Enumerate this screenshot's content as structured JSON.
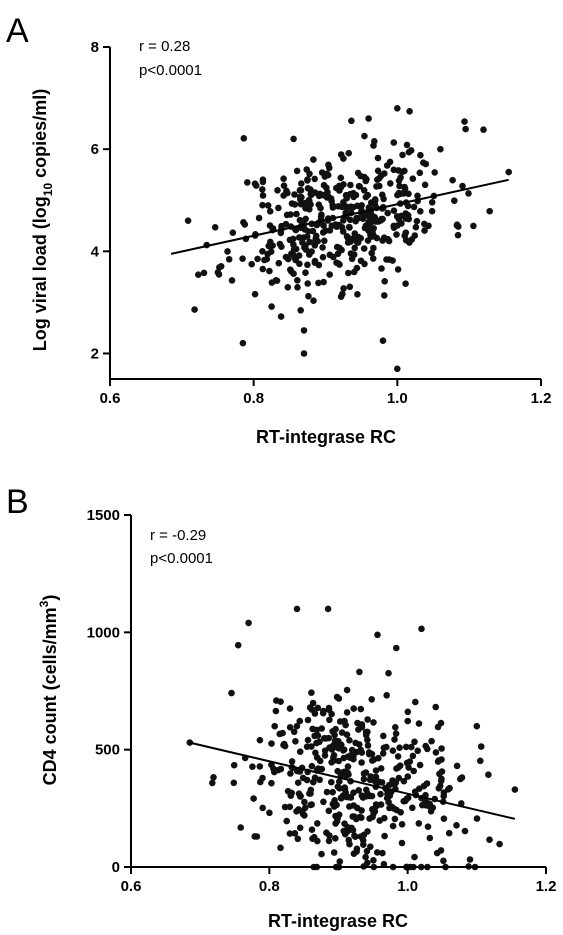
{
  "chart_data": [
    {
      "type": "scatter",
      "panel_label": "A",
      "xlabel": "RT-integrase RC",
      "ylabel_parts": [
        "Log viral load (log",
        "10",
        " copies/ml)"
      ],
      "xlim": [
        0.6,
        1.2
      ],
      "ylim": [
        1.5,
        8
      ],
      "xticks": [
        0.6,
        0.8,
        1.0,
        1.2
      ],
      "xtick_labels": [
        "0.6",
        "0.8",
        "1.0",
        "1.2"
      ],
      "yticks": [
        2,
        4,
        6,
        8
      ],
      "ytick_labels": [
        "2",
        "4",
        "6",
        "8"
      ],
      "annotations": [
        "r = 0.28",
        "p<0.0001"
      ],
      "regression": {
        "x": [
          0.685,
          1.155
        ],
        "y": [
          3.95,
          5.4
        ]
      },
      "series": [
        {
          "n_points": 440,
          "seed": 11,
          "x_center": 0.92,
          "x_spread": 0.075,
          "x_min": 0.685,
          "x_max": 1.155,
          "slope": 3.1,
          "intercept": 1.8,
          "noise": 0.68,
          "y_min": 1.7,
          "y_max": 6.8,
          "extra_points": [
            [
              1.0,
              1.7
            ],
            [
              0.87,
              2.0
            ],
            [
              0.785,
              2.2
            ],
            [
              0.98,
              2.25
            ],
            [
              1.06,
              6.0
            ],
            [
              1.12,
              6.38
            ],
            [
              1.155,
              5.55
            ],
            [
              1.0,
              6.8
            ],
            [
              0.96,
              6.6
            ]
          ]
        }
      ]
    },
    {
      "type": "scatter",
      "panel_label": "B",
      "xlabel": "RT-integrase RC",
      "ylabel_parts": [
        "CD4 count (cells/mm",
        "3",
        ")"
      ],
      "xlim": [
        0.6,
        1.2
      ],
      "ylim": [
        0,
        1500
      ],
      "xticks": [
        0.6,
        0.8,
        1.0,
        1.2
      ],
      "xtick_labels": [
        "0.6",
        "0.8",
        "1.0",
        "1.2"
      ],
      "yticks": [
        0,
        500,
        1000,
        1500
      ],
      "ytick_labels": [
        "0",
        "500",
        "1000",
        "1500"
      ],
      "annotations": [
        "r = -0.29",
        "p<0.0001"
      ],
      "regression": {
        "x": [
          0.685,
          1.155
        ],
        "y": [
          530,
          205
        ]
      },
      "series": [
        {
          "n_points": 440,
          "seed": 29,
          "x_center": 0.92,
          "x_spread": 0.075,
          "x_min": 0.685,
          "x_max": 1.155,
          "slope": -690,
          "intercept": 1000,
          "noise": 190,
          "y_min": 0,
          "y_max": 1100,
          "extra_points": [
            [
              0.77,
              1040
            ],
            [
              0.84,
              1100
            ],
            [
              0.885,
              1100
            ],
            [
              1.02,
              1015
            ],
            [
              0.755,
              945
            ],
            [
              0.685,
              530
            ],
            [
              1.155,
              330
            ],
            [
              1.1,
              600
            ]
          ]
        }
      ]
    }
  ]
}
